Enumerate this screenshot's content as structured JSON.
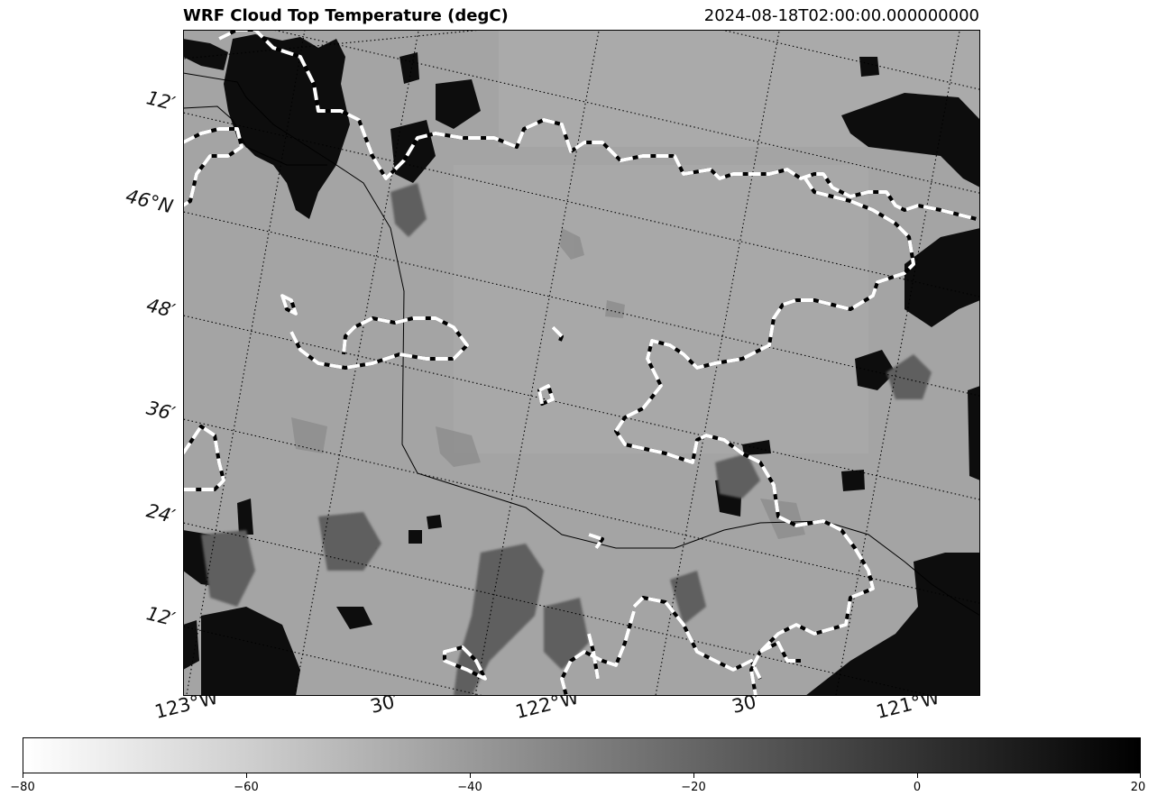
{
  "title": "WRF Cloud Top Temperature (degC)",
  "timestamp": "2024-08-18T02:00:00.000000000",
  "lat_labels": [
    "12′",
    "46°N",
    "48′",
    "36′",
    "24′",
    "12′"
  ],
  "lon_labels": [
    "123°W",
    "30′",
    "122°W",
    "30′",
    "121°W"
  ],
  "colorbar": {
    "ticks": [
      "−80",
      "−60",
      "−40",
      "−20",
      "0",
      "20"
    ],
    "min": -80,
    "max": 20,
    "colormap": "grayscale (white to black)"
  },
  "colors": {
    "field_background": "#a4a4a4",
    "cold_cloud": "#0b0b0b",
    "contour": "#ffffff"
  }
}
